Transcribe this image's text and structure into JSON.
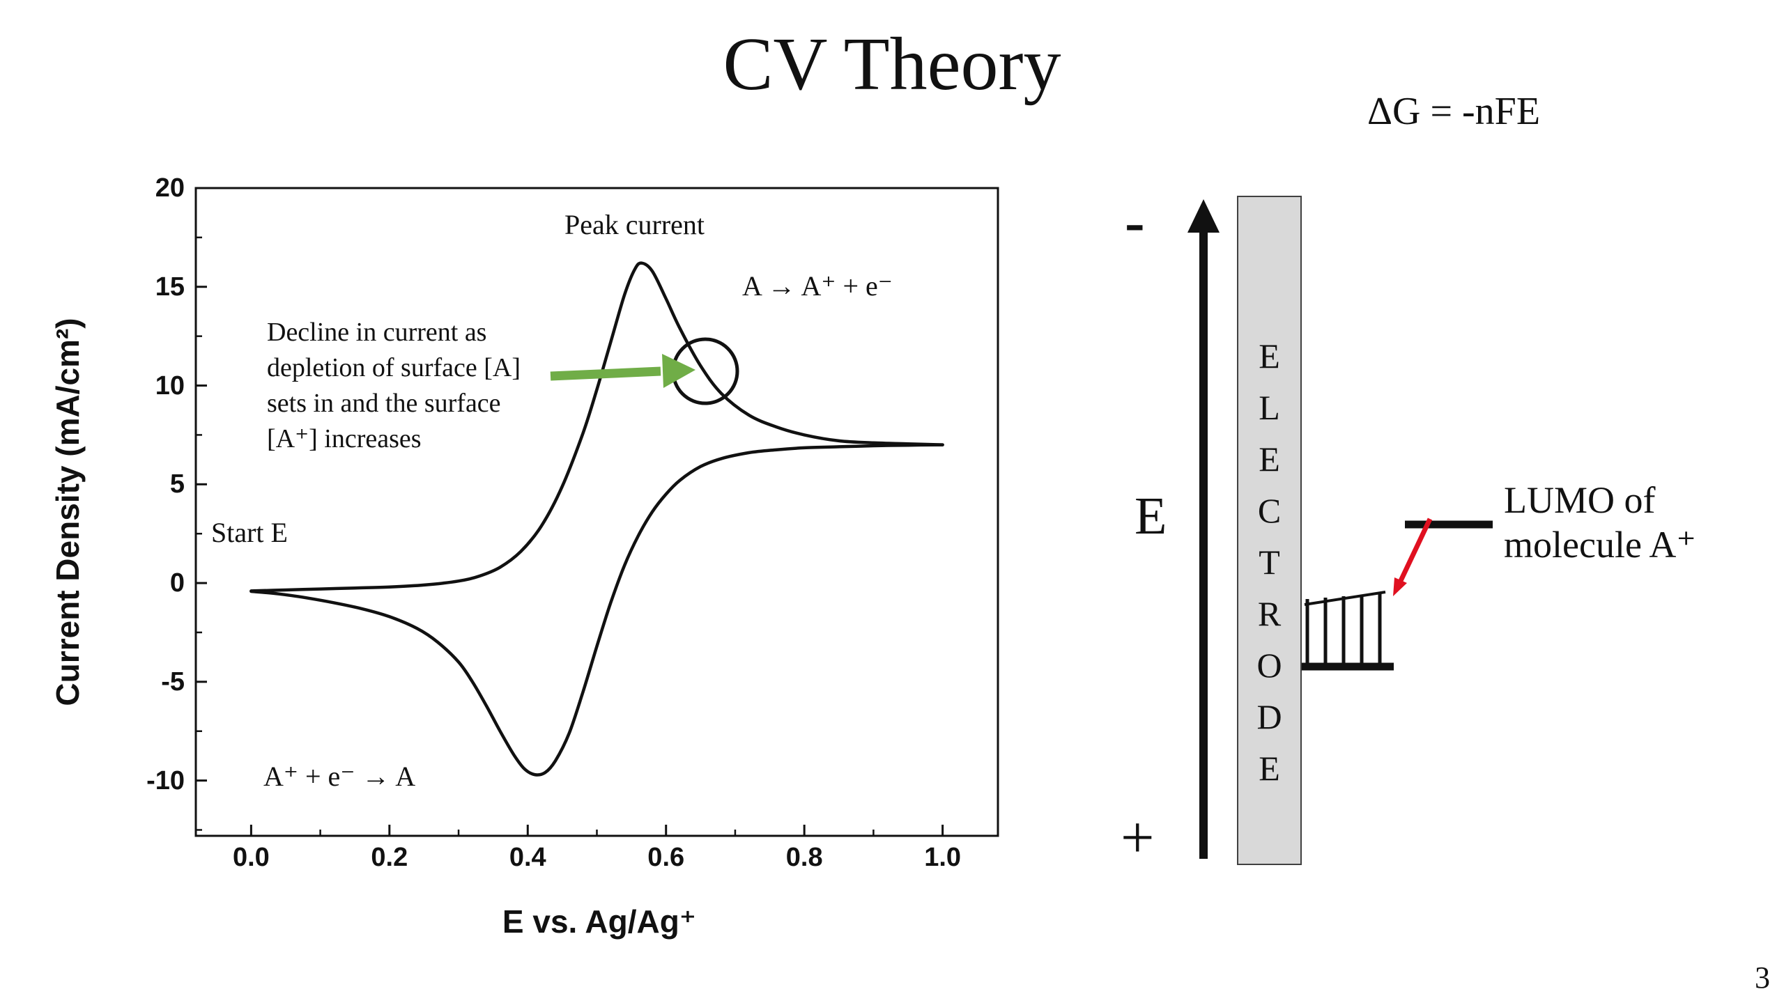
{
  "colors": {
    "ink": "#111111",
    "green": "#70ad47",
    "red": "#e01020",
    "electrode": "#d9d9d9"
  },
  "slide": {
    "title": "CV Theory",
    "equation": "ΔG = -nFE",
    "page_number": "3"
  },
  "chart_data": {
    "type": "line",
    "title": "",
    "xlabel": "E vs. Ag/Ag⁺",
    "ylabel": "Current Density (mA/cm²)",
    "xlim": [
      -0.08,
      1.08
    ],
    "ylim": [
      -12.8,
      20
    ],
    "x_ticks": [
      0.0,
      0.2,
      0.4,
      0.6,
      0.8,
      1.0
    ],
    "x_tick_labels": [
      "0.0",
      "0.2",
      "0.4",
      "0.6",
      "0.8",
      "1.0"
    ],
    "x_minor_ticks": [
      0.1,
      0.3,
      0.5,
      0.7,
      0.9
    ],
    "y_ticks": [
      20,
      15,
      10,
      5,
      0,
      -5,
      -10
    ],
    "y_tick_labels": [
      "20",
      "15",
      "10",
      "5",
      "0",
      "-5",
      "-10"
    ],
    "y_minor_ticks": [
      17.5,
      12.5,
      7.5,
      2.5,
      -2.5,
      -7.5,
      -12.5
    ],
    "grid": false,
    "legend": "none",
    "peaks": {
      "anodic_peak": {
        "E": 0.565,
        "i": 16.2
      },
      "cathodic_peak": {
        "E": 0.41,
        "i": -9.7
      },
      "plateau_current": 7.0,
      "start_point": {
        "E": 0.0,
        "i": -0.4
      }
    },
    "series": [
      {
        "name": "forward-anodic-sweep",
        "points": [
          [
            0.0,
            -0.4
          ],
          [
            0.05,
            -0.35
          ],
          [
            0.1,
            -0.3
          ],
          [
            0.15,
            -0.25
          ],
          [
            0.2,
            -0.2
          ],
          [
            0.25,
            -0.1
          ],
          [
            0.3,
            0.1
          ],
          [
            0.33,
            0.35
          ],
          [
            0.36,
            0.8
          ],
          [
            0.39,
            1.6
          ],
          [
            0.42,
            2.9
          ],
          [
            0.45,
            4.9
          ],
          [
            0.48,
            7.6
          ],
          [
            0.5,
            9.8
          ],
          [
            0.52,
            12.2
          ],
          [
            0.54,
            14.6
          ],
          [
            0.555,
            15.9
          ],
          [
            0.565,
            16.2
          ],
          [
            0.58,
            15.8
          ],
          [
            0.6,
            14.4
          ],
          [
            0.62,
            12.9
          ],
          [
            0.65,
            11.0
          ],
          [
            0.68,
            9.6
          ],
          [
            0.72,
            8.5
          ],
          [
            0.76,
            7.9
          ],
          [
            0.8,
            7.5
          ],
          [
            0.85,
            7.2
          ],
          [
            0.9,
            7.1
          ],
          [
            0.95,
            7.05
          ],
          [
            1.0,
            7.0
          ]
        ]
      },
      {
        "name": "reverse-cathodic-sweep",
        "points": [
          [
            1.0,
            7.0
          ],
          [
            0.95,
            6.98
          ],
          [
            0.9,
            6.95
          ],
          [
            0.85,
            6.9
          ],
          [
            0.8,
            6.85
          ],
          [
            0.76,
            6.75
          ],
          [
            0.72,
            6.6
          ],
          [
            0.68,
            6.3
          ],
          [
            0.65,
            5.9
          ],
          [
            0.62,
            5.2
          ],
          [
            0.6,
            4.5
          ],
          [
            0.58,
            3.6
          ],
          [
            0.56,
            2.4
          ],
          [
            0.54,
            0.9
          ],
          [
            0.52,
            -1.0
          ],
          [
            0.5,
            -3.2
          ],
          [
            0.48,
            -5.5
          ],
          [
            0.46,
            -7.6
          ],
          [
            0.44,
            -9.0
          ],
          [
            0.425,
            -9.6
          ],
          [
            0.41,
            -9.7
          ],
          [
            0.395,
            -9.4
          ],
          [
            0.38,
            -8.7
          ],
          [
            0.36,
            -7.5
          ],
          [
            0.34,
            -6.2
          ],
          [
            0.32,
            -5.0
          ],
          [
            0.3,
            -4.0
          ],
          [
            0.27,
            -3.0
          ],
          [
            0.24,
            -2.3
          ],
          [
            0.2,
            -1.7
          ],
          [
            0.16,
            -1.3
          ],
          [
            0.12,
            -1.0
          ],
          [
            0.08,
            -0.75
          ],
          [
            0.04,
            -0.55
          ],
          [
            0.0,
            -0.42
          ]
        ]
      }
    ],
    "annotations": {
      "peak_current": "Peak current",
      "oxidation": "A → A⁺ + e⁻",
      "decline": "Decline in current as\ndepletion of surface [A]\nsets in and the surface\n[A⁺] increases",
      "start_e": "Start E",
      "reduction": "A⁺ + e⁻ → A"
    }
  },
  "energy_diagram": {
    "minus_label": "-",
    "plus_label": "+",
    "axis_label": "E",
    "electrode_letters": [
      "E",
      "L",
      "E",
      "C",
      "T",
      "R",
      "O",
      "D",
      "E"
    ],
    "lumo_label": "LUMO of\nmolecule A⁺"
  }
}
